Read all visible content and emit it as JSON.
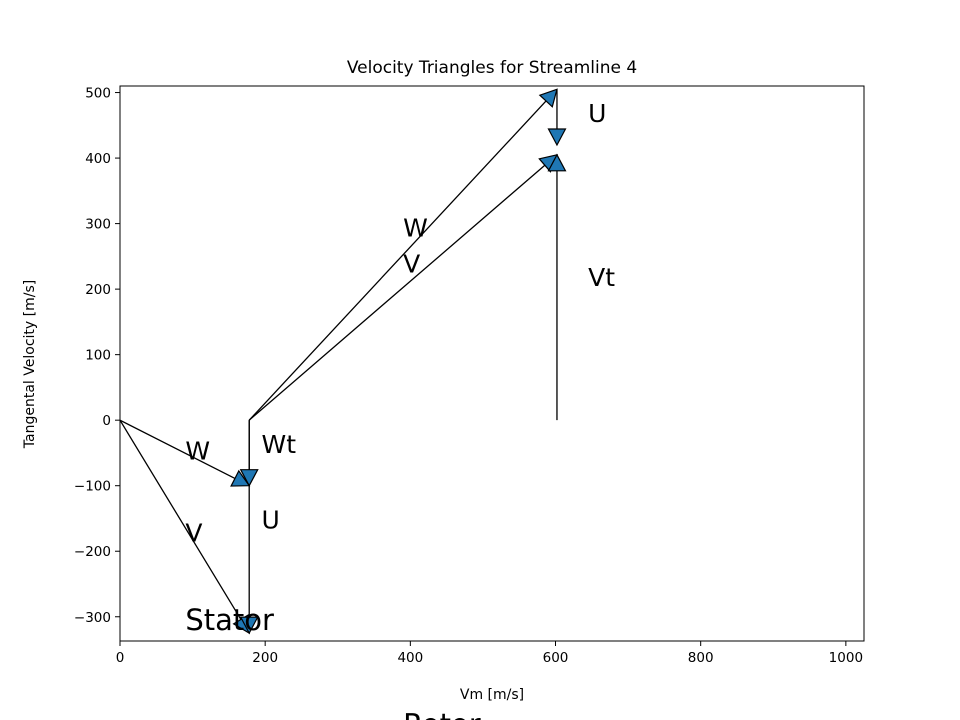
{
  "chart_data": {
    "type": "line",
    "title": "Velocity Triangles for Streamline 4",
    "xlabel": "Vm [m/s]",
    "ylabel": "Tangental Velocity [m/s]",
    "xlim": [
      0,
      1025
    ],
    "ylim": [
      -337,
      510
    ],
    "xticks": [
      0,
      200,
      400,
      600,
      800,
      1000
    ],
    "yticks": [
      -300,
      -200,
      -100,
      0,
      100,
      200,
      300,
      400,
      500
    ],
    "grid": false,
    "arrow_color": "#1f77b4",
    "vectors": [
      {
        "name": "V",
        "from": [
          0,
          0
        ],
        "to": [
          178,
          -325
        ]
      },
      {
        "name": "W",
        "from": [
          0,
          0
        ],
        "to": [
          178,
          -100
        ]
      },
      {
        "name": "U",
        "from": [
          178,
          0
        ],
        "to": [
          178,
          -325
        ]
      },
      {
        "name": "Wt",
        "from": [
          178,
          0
        ],
        "to": [
          178,
          -100
        ]
      },
      {
        "name": "W",
        "from": [
          178,
          0
        ],
        "to": [
          602,
          505
        ]
      },
      {
        "name": "V",
        "from": [
          178,
          0
        ],
        "to": [
          602,
          405
        ]
      },
      {
        "name": "U",
        "from": [
          602,
          505
        ],
        "to": [
          602,
          420
        ]
      },
      {
        "name": "Vt",
        "from": [
          602,
          0
        ],
        "to": [
          602,
          405
        ]
      }
    ],
    "annotations": [
      {
        "text": "W",
        "x": 90,
        "y": -60,
        "size": "normal"
      },
      {
        "text": "V",
        "x": 90,
        "y": -185,
        "size": "normal"
      },
      {
        "text": "Wt",
        "x": 195,
        "y": -50,
        "size": "normal"
      },
      {
        "text": "U",
        "x": 195,
        "y": -165,
        "size": "normal"
      },
      {
        "text": "Stator",
        "x": 90,
        "y": -320,
        "size": "big"
      },
      {
        "text": "W",
        "x": 390,
        "y": 280,
        "size": "normal"
      },
      {
        "text": "V",
        "x": 390,
        "y": 225,
        "size": "normal"
      },
      {
        "text": "U",
        "x": 645,
        "y": 455,
        "size": "normal"
      },
      {
        "text": "Vt",
        "x": 645,
        "y": 205,
        "size": "normal"
      },
      {
        "text": "Rotor",
        "x": 390,
        "y": -480,
        "size": "big"
      }
    ]
  }
}
